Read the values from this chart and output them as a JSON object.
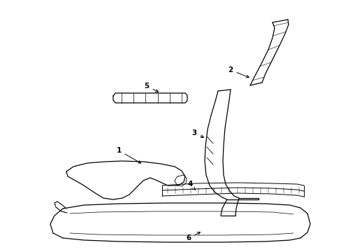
{
  "background_color": "#ffffff",
  "line_color": "#000000",
  "label_color": "#000000"
}
